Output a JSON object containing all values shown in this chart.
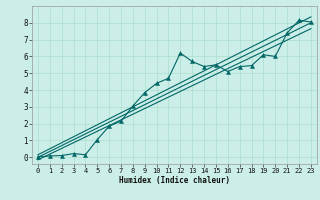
{
  "title": "",
  "xlabel": "Humidex (Indice chaleur)",
  "bg_color": "#cceee8",
  "grid_color": "#aaddcc",
  "line_color": "#006666",
  "marker_color": "#006666",
  "xlim": [
    -0.5,
    23.5
  ],
  "ylim": [
    -0.4,
    9.0
  ],
  "xticks": [
    0,
    1,
    2,
    3,
    4,
    5,
    6,
    7,
    8,
    9,
    10,
    11,
    12,
    13,
    14,
    15,
    16,
    17,
    18,
    19,
    20,
    21,
    22,
    23
  ],
  "yticks": [
    0,
    1,
    2,
    3,
    4,
    5,
    6,
    7,
    8
  ],
  "main_series": [
    [
      0,
      0.02
    ],
    [
      1,
      0.08
    ],
    [
      2,
      0.1
    ],
    [
      3,
      0.22
    ],
    [
      4,
      0.15
    ],
    [
      5,
      1.05
    ],
    [
      6,
      1.85
    ],
    [
      7,
      2.15
    ],
    [
      8,
      3.05
    ],
    [
      9,
      3.85
    ],
    [
      10,
      4.4
    ],
    [
      11,
      4.7
    ],
    [
      12,
      6.2
    ],
    [
      13,
      5.7
    ],
    [
      14,
      5.4
    ],
    [
      15,
      5.5
    ],
    [
      16,
      5.1
    ],
    [
      17,
      5.4
    ],
    [
      18,
      5.45
    ],
    [
      19,
      6.1
    ],
    [
      20,
      6.0
    ],
    [
      21,
      7.4
    ],
    [
      22,
      8.15
    ],
    [
      23,
      8.05
    ]
  ],
  "line1": [
    [
      0,
      0.0
    ],
    [
      23,
      8.0
    ]
  ],
  "line2": [
    [
      0,
      0.15
    ],
    [
      23,
      8.35
    ]
  ],
  "line3": [
    [
      0,
      -0.15
    ],
    [
      23,
      7.65
    ]
  ]
}
